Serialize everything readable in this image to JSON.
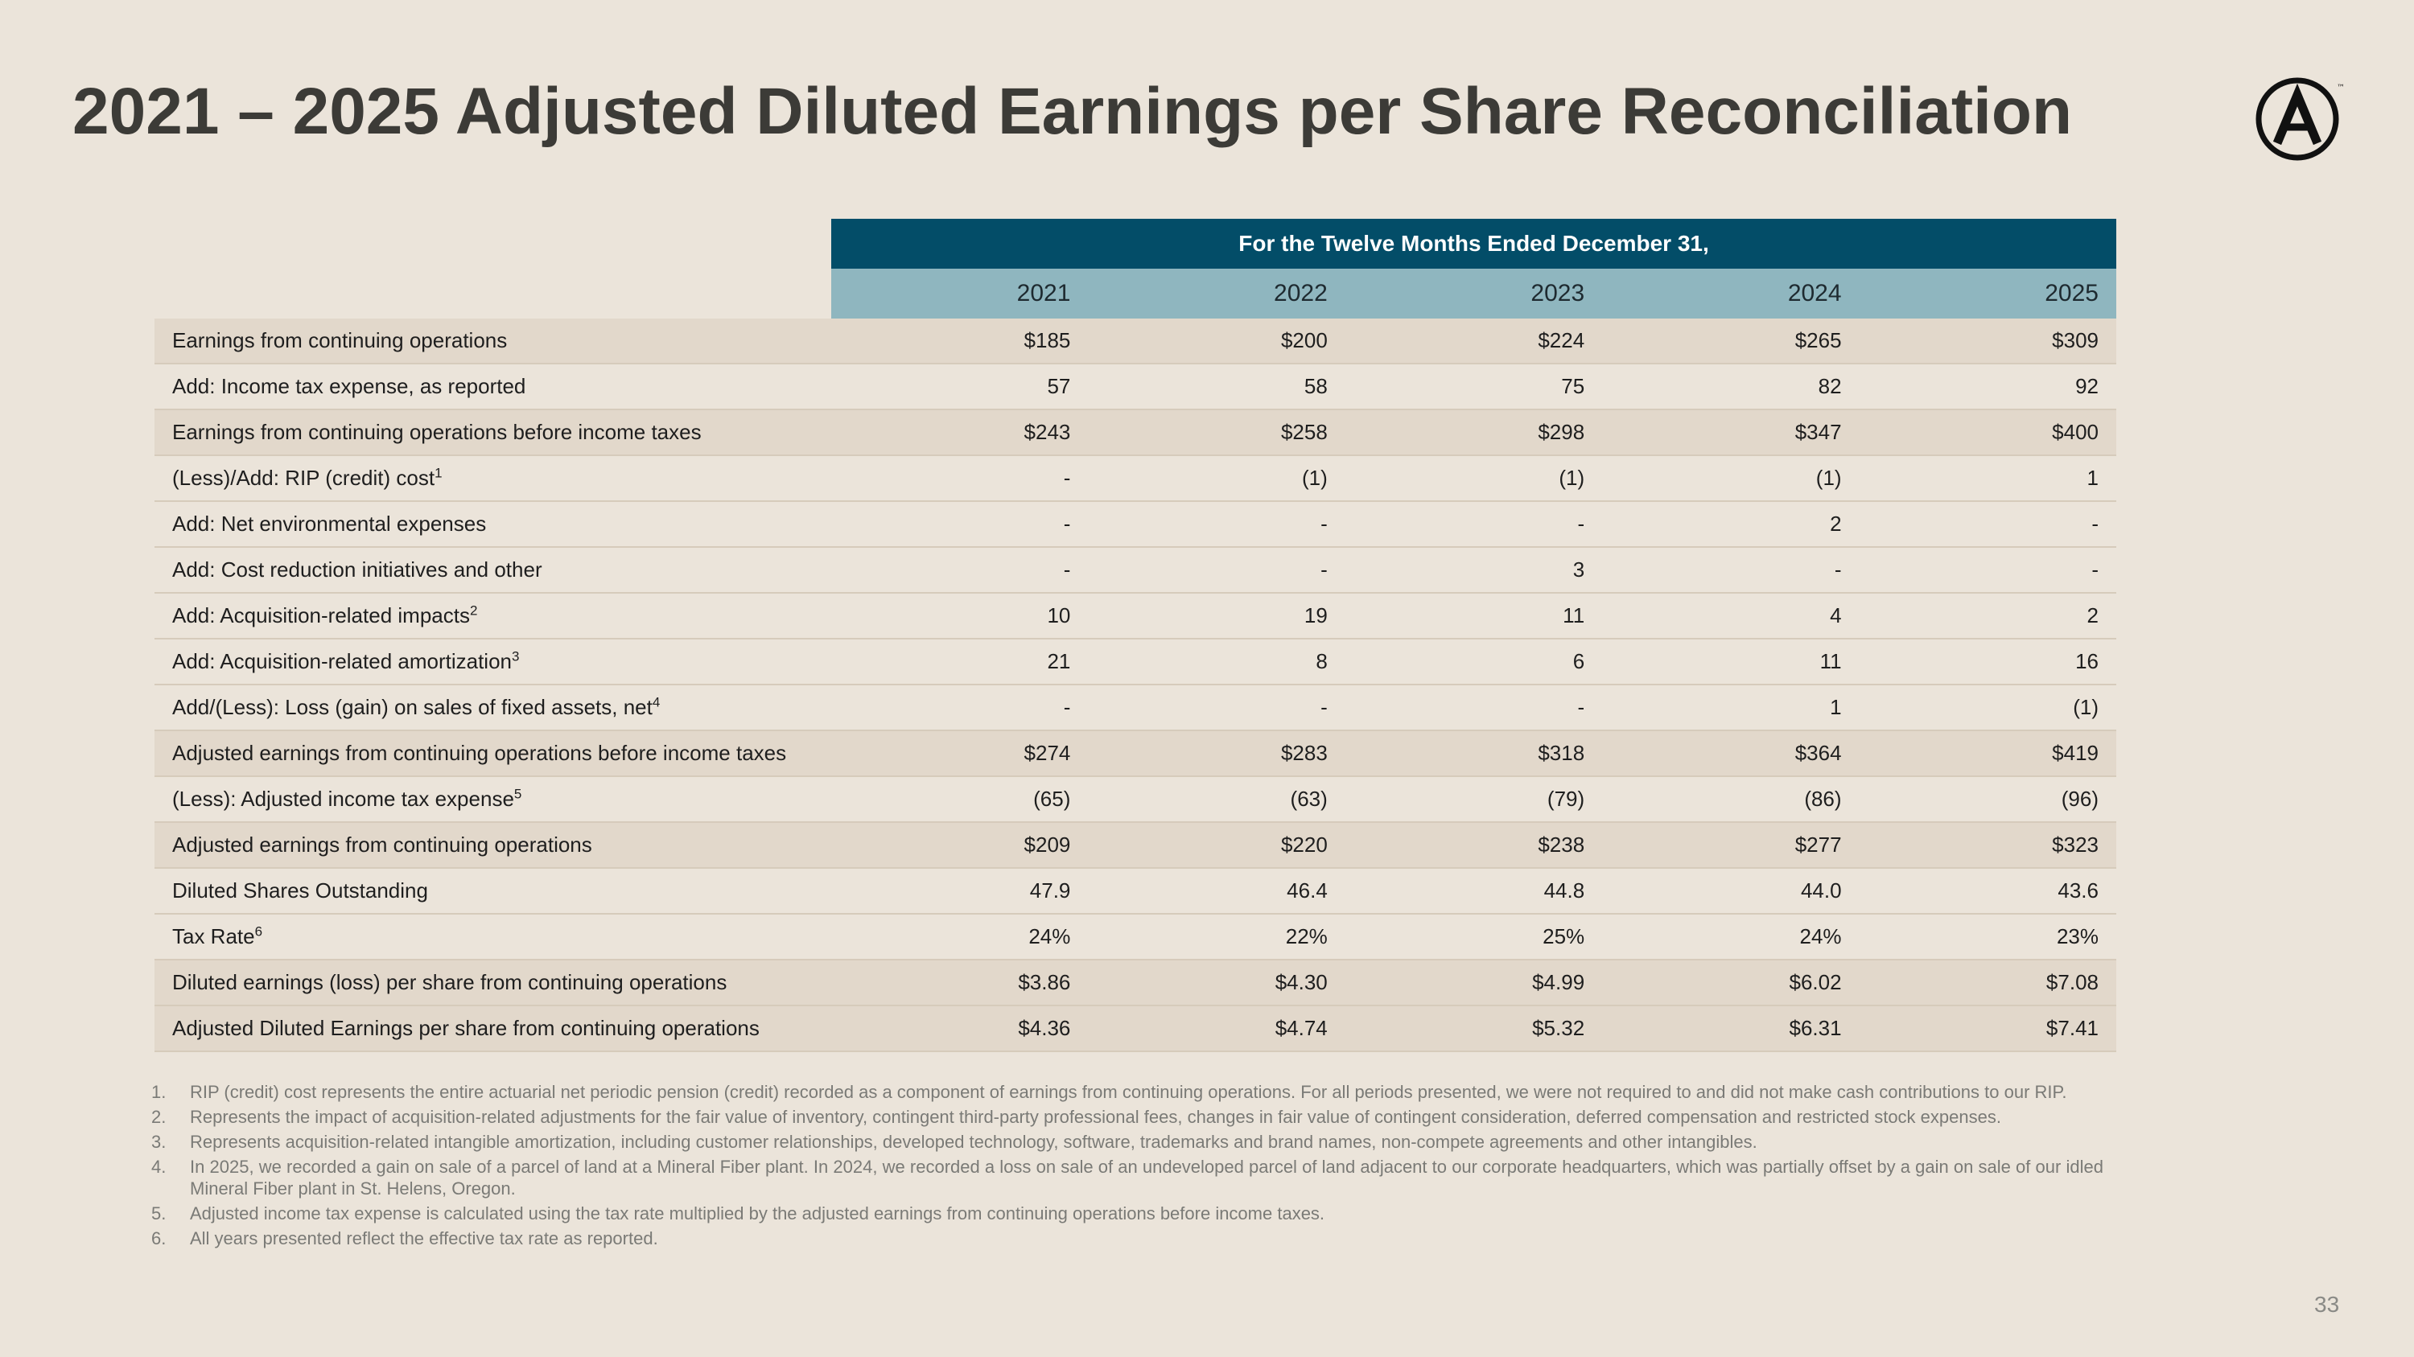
{
  "title": "2021 – 2025 Adjusted Diluted Earnings per Share Reconciliation",
  "logo": {
    "icon": "circled-a-logo",
    "trademark": "™"
  },
  "table": {
    "period_header": "For the Twelve Months Ended December 31,",
    "years": [
      "2021",
      "2022",
      "2023",
      "2024",
      "2025"
    ],
    "rows": [
      {
        "label": "Earnings from continuing operations",
        "sup": "",
        "values": [
          "$185",
          "$200",
          "$224",
          "$265",
          "$309"
        ],
        "shade": true
      },
      {
        "label": "Add: Income tax expense, as reported",
        "sup": "",
        "values": [
          "57",
          "58",
          "75",
          "82",
          "92"
        ],
        "shade": false
      },
      {
        "label": "Earnings from continuing operations before income taxes",
        "sup": "",
        "values": [
          "$243",
          "$258",
          "$298",
          "$347",
          "$400"
        ],
        "shade": true
      },
      {
        "label": "(Less)/Add: RIP (credit) cost",
        "sup": "1",
        "values": [
          "-",
          "(1)",
          "(1)",
          "(1)",
          "1"
        ],
        "shade": false
      },
      {
        "label": "Add: Net environmental expenses",
        "sup": "",
        "values": [
          "-",
          "-",
          "-",
          "2",
          "-"
        ],
        "shade": false
      },
      {
        "label": "Add: Cost reduction initiatives and other",
        "sup": "",
        "values": [
          "-",
          "-",
          "3",
          "-",
          "-"
        ],
        "shade": false
      },
      {
        "label": "Add: Acquisition-related impacts",
        "sup": "2",
        "values": [
          "10",
          "19",
          "11",
          "4",
          "2"
        ],
        "shade": false
      },
      {
        "label": "Add: Acquisition-related amortization",
        "sup": "3",
        "values": [
          "21",
          "8",
          "6",
          "11",
          "16"
        ],
        "shade": false
      },
      {
        "label": "Add/(Less): Loss (gain) on sales of fixed assets, net",
        "sup": "4",
        "values": [
          "-",
          "-",
          "-",
          "1",
          "(1)"
        ],
        "shade": false
      },
      {
        "label": "Adjusted earnings from continuing operations before income taxes",
        "sup": "",
        "values": [
          "$274",
          "$283",
          "$318",
          "$364",
          "$419"
        ],
        "shade": true
      },
      {
        "label": "(Less): Adjusted income tax expense",
        "sup": "5",
        "values": [
          "(65)",
          "(63)",
          "(79)",
          "(86)",
          "(96)"
        ],
        "shade": false
      },
      {
        "label": "Adjusted earnings from continuing operations",
        "sup": "",
        "values": [
          "$209",
          "$220",
          "$238",
          "$277",
          "$323"
        ],
        "shade": true
      },
      {
        "label": "Diluted Shares Outstanding",
        "sup": "",
        "values": [
          "47.9",
          "46.4",
          "44.8",
          "44.0",
          "43.6"
        ],
        "shade": false
      },
      {
        "label": "Tax Rate",
        "sup": "6",
        "values": [
          "24%",
          "22%",
          "25%",
          "24%",
          "23%"
        ],
        "shade": false
      },
      {
        "label": "Diluted earnings (loss) per share from continuing operations",
        "sup": "",
        "values": [
          "$3.86",
          "$4.30",
          "$4.99",
          "$6.02",
          "$7.08"
        ],
        "shade": true
      },
      {
        "label": "Adjusted Diluted Earnings per share from continuing operations",
        "sup": "",
        "values": [
          "$4.36",
          "$4.74",
          "$5.32",
          "$6.31",
          "$7.41"
        ],
        "shade": true
      }
    ]
  },
  "footnotes": [
    {
      "num": "1.",
      "text": "RIP (credit) cost represents the entire actuarial net periodic pension (credit) recorded as a component of earnings from continuing operations. For all periods presented, we were not required to and did not make cash contributions to our RIP."
    },
    {
      "num": "2.",
      "text": "Represents the impact of acquisition-related adjustments for the fair value of inventory, contingent third-party professional fees, changes in fair value of contingent consideration, deferred compensation and restricted stock expenses."
    },
    {
      "num": "3.",
      "text": "Represents acquisition-related intangible amortization, including customer relationships, developed technology, software, trademarks and brand names, non-compete agreements and other intangibles."
    },
    {
      "num": "4.",
      "text": "In 2025, we recorded a gain on sale of a parcel of land at a Mineral Fiber plant. In 2024, we recorded a loss on sale of an undeveloped parcel of land adjacent to our corporate headquarters, which was partially offset by a gain on sale of our idled Mineral Fiber plant in St. Helens, Oregon."
    },
    {
      "num": "5.",
      "text": "Adjusted income tax expense is calculated using the tax rate multiplied by the adjusted earnings from continuing operations before income taxes."
    },
    {
      "num": "6.",
      "text": "All years presented reflect the effective tax rate as reported."
    }
  ],
  "page_number": "33"
}
